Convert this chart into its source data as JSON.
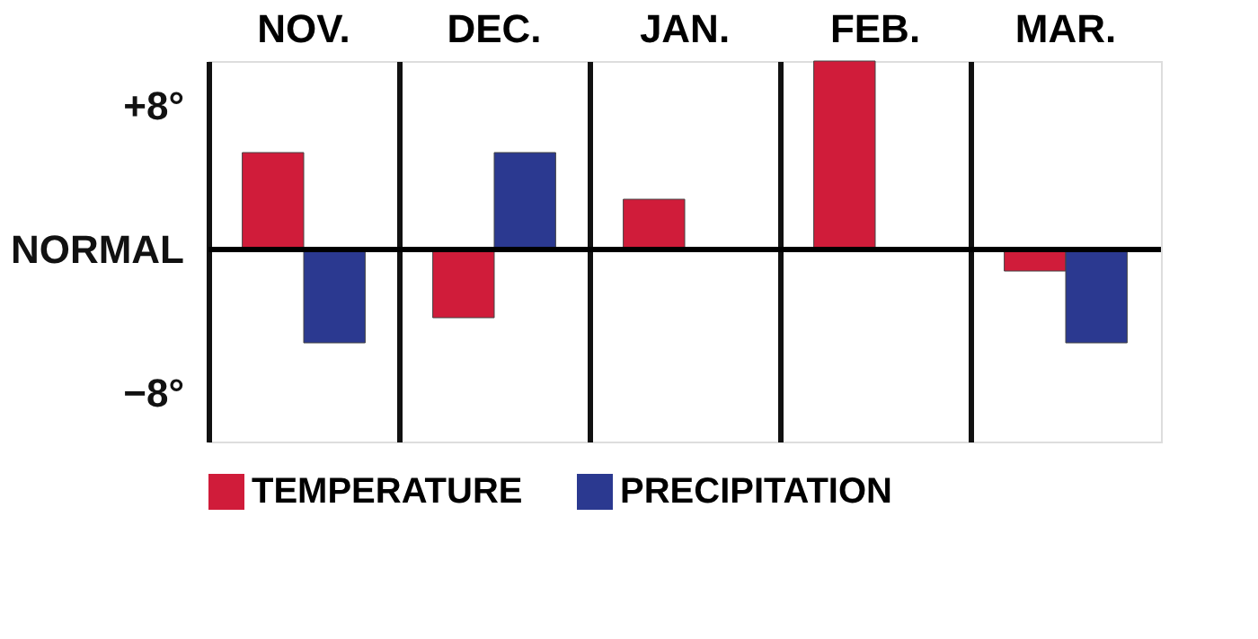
{
  "chart_data": {
    "type": "bar",
    "categories": [
      "NOV.",
      "DEC.",
      "JAN.",
      "FEB.",
      "MAR."
    ],
    "series": [
      {
        "name": "TEMPERATURE",
        "color": "#d01c3a",
        "values": [
          5.4,
          -3.8,
          2.8,
          10.5,
          -1.2
        ]
      },
      {
        "name": "PRECIPITATION",
        "color": "#2b3990",
        "values": [
          -5.2,
          5.4,
          null,
          null,
          -5.2
        ]
      }
    ],
    "ylim": [
      -10.7,
      10.5
    ],
    "yticks": [
      {
        "value": 8,
        "label": "+8°"
      },
      {
        "value": 0,
        "label": "NORMAL"
      },
      {
        "value": -8,
        "label": "−8°"
      }
    ],
    "ref_lines": [
      {
        "axis": "y",
        "value": 0,
        "color": "#000000"
      }
    ],
    "grid": "x",
    "legend": "bottom"
  }
}
